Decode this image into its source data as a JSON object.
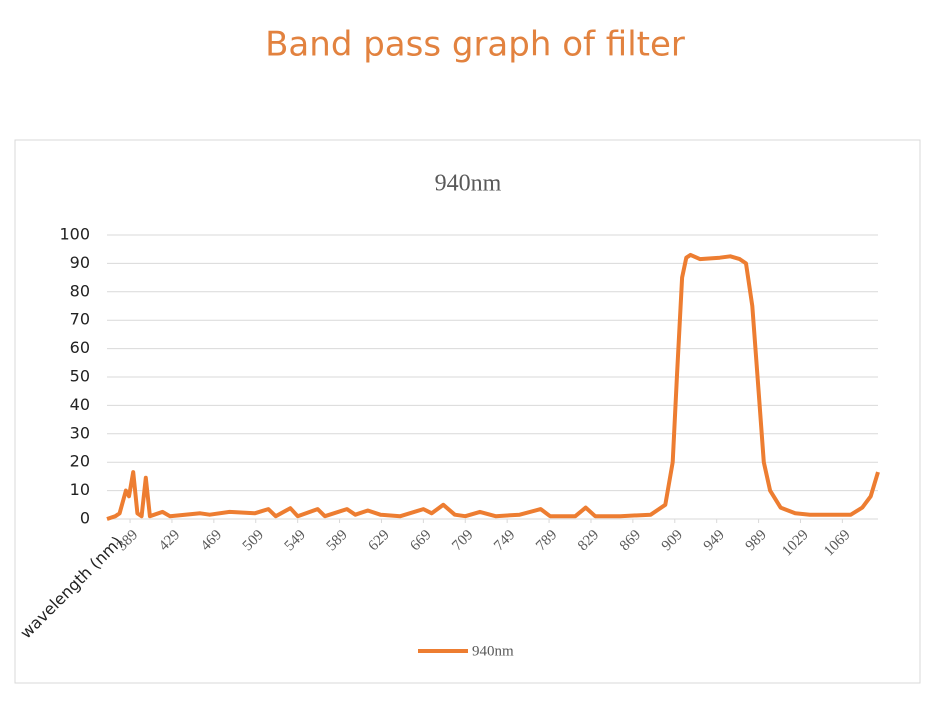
{
  "page_title": "Band pass graph of filter",
  "chart_data": {
    "type": "line",
    "title": "940nm",
    "x_label": "wavelength (nm)",
    "x": [
      367,
      375,
      379,
      385,
      388,
      392,
      396,
      400,
      404,
      408,
      420,
      427,
      456,
      465,
      484,
      508,
      521,
      528,
      542,
      549,
      568,
      575,
      596,
      604,
      616,
      628,
      647,
      669,
      677,
      688,
      699,
      709,
      723,
      738,
      761,
      781,
      790,
      814,
      824,
      833,
      857,
      886,
      900,
      907,
      911,
      916,
      920,
      924,
      933,
      952,
      962,
      971,
      977,
      983,
      989,
      994,
      1000,
      1010,
      1024,
      1038,
      1077,
      1088,
      1096,
      1103
    ],
    "series": [
      {
        "name": "940nm",
        "color": "#ed7d31",
        "values": [
          0,
          1,
          2,
          10,
          8,
          16.5,
          2,
          1,
          14.5,
          1,
          2.5,
          1,
          2,
          1.5,
          2.5,
          2,
          3.5,
          1,
          3.8,
          1,
          3.5,
          1,
          3.5,
          1.5,
          3,
          1.5,
          1,
          3.5,
          2,
          5,
          1.5,
          1,
          2.5,
          1,
          1.5,
          3.5,
          1,
          1,
          4,
          1,
          1,
          1.5,
          5,
          20,
          50,
          85,
          92,
          93,
          91.5,
          92,
          92.5,
          91.5,
          90,
          75,
          45,
          20,
          10,
          4,
          2,
          1.5,
          1.5,
          4,
          8,
          16.5
        ]
      }
    ],
    "xlim": [
      367,
      1103
    ],
    "xticks": [
      389,
      429,
      469,
      509,
      549,
      589,
      629,
      669,
      709,
      749,
      789,
      829,
      869,
      909,
      949,
      989,
      1029,
      1069
    ],
    "ylim": [
      0,
      100
    ],
    "yticks": [
      0,
      10,
      20,
      30,
      40,
      50,
      60,
      70,
      80,
      90,
      100
    ],
    "grid": true,
    "legend": "bottom"
  }
}
